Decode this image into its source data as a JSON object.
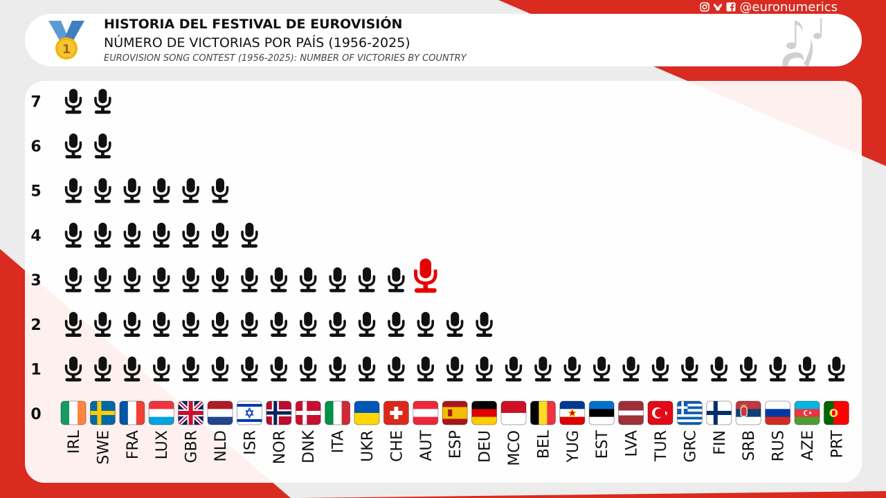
{
  "header": {
    "title": "HISTORIA DEL FESTIVAL DE EUROVISIÓN",
    "subtitle": "NÚMERO DE VICTORIAS POR PAÍS (1956-2025)",
    "subtitle_en": "EUROVISION SONG CONTEST (1956-2025): NUMBER OF VICTORIES BY COUNTRY",
    "medal_number": "1"
  },
  "social": {
    "handle": "@euronumerics",
    "icons": [
      "instagram-icon",
      "bluesky-icon",
      "facebook-icon"
    ]
  },
  "colors": {
    "accent_red": "#d92b20",
    "mic": "#111111",
    "highlight": "#e60000"
  },
  "chart_data": {
    "type": "bar",
    "title": "NÚMERO DE VICTORIAS POR PAÍS (1956-2025)",
    "xlabel": "",
    "ylabel": "",
    "ylim": [
      0,
      7
    ],
    "yticks": [
      "0",
      "1",
      "2",
      "3",
      "4",
      "5",
      "6",
      "7"
    ],
    "categories": [
      "IRL",
      "SWE",
      "FRA",
      "LUX",
      "GBR",
      "NLD",
      "ISR",
      "NOR",
      "DNK",
      "ITA",
      "UKR",
      "CHE",
      "AUT",
      "ESP",
      "DEU",
      "MCO",
      "BEL",
      "YUG",
      "EST",
      "LVA",
      "TUR",
      "GRC",
      "FIN",
      "SRB",
      "RUS",
      "AZE",
      "PRT"
    ],
    "values": [
      7,
      7,
      5,
      5,
      5,
      5,
      4,
      3,
      3,
      3,
      3,
      3,
      3,
      2,
      2,
      1,
      1,
      1,
      1,
      1,
      1,
      1,
      1,
      1,
      1,
      1,
      1
    ],
    "highlight": {
      "category": "AUT",
      "value": 3
    },
    "marker": "microphone-icon",
    "flag_colors": {
      "IRL": [
        "#169b62",
        "#ffffff",
        "#ff883e"
      ],
      "SWE": [
        "#006aa7",
        "#fecc00"
      ],
      "FRA": [
        "#0055a4",
        "#ffffff",
        "#ef4135"
      ],
      "LUX": [
        "#ef3340",
        "#ffffff",
        "#00a3e0"
      ],
      "GBR": [
        "#012169",
        "#ffffff",
        "#c8102e"
      ],
      "NLD": [
        "#ae1c28",
        "#ffffff",
        "#21468b"
      ],
      "ISR": [
        "#ffffff",
        "#0038b8"
      ],
      "NOR": [
        "#ba0c2f",
        "#ffffff",
        "#00205b"
      ],
      "DNK": [
        "#c8102e",
        "#ffffff"
      ],
      "ITA": [
        "#009246",
        "#ffffff",
        "#ce2b37"
      ],
      "UKR": [
        "#0057b7",
        "#ffd700"
      ],
      "CHE": [
        "#da291c",
        "#ffffff"
      ],
      "AUT": [
        "#ed2939",
        "#ffffff",
        "#ed2939"
      ],
      "ESP": [
        "#aa151b",
        "#f1bf00",
        "#aa151b"
      ],
      "DEU": [
        "#000000",
        "#dd0000",
        "#ffce00"
      ],
      "MCO": [
        "#ce1126",
        "#ffffff"
      ],
      "BEL": [
        "#000000",
        "#fdda24",
        "#ef3340"
      ],
      "YUG": [
        "#003893",
        "#ffffff",
        "#de0000"
      ],
      "EST": [
        "#0072ce",
        "#000000",
        "#ffffff"
      ],
      "LVA": [
        "#9e3039",
        "#ffffff",
        "#9e3039"
      ],
      "TUR": [
        "#e30a17",
        "#ffffff"
      ],
      "GRC": [
        "#0d5eaf",
        "#ffffff"
      ],
      "FIN": [
        "#ffffff",
        "#002f6c"
      ],
      "SRB": [
        "#c6363c",
        "#0c4076",
        "#ffffff"
      ],
      "RUS": [
        "#ffffff",
        "#0039a6",
        "#d52b1e"
      ],
      "AZE": [
        "#00b5e2",
        "#ef3340",
        "#509e2f"
      ],
      "PRT": [
        "#006600",
        "#ff0000"
      ]
    }
  }
}
